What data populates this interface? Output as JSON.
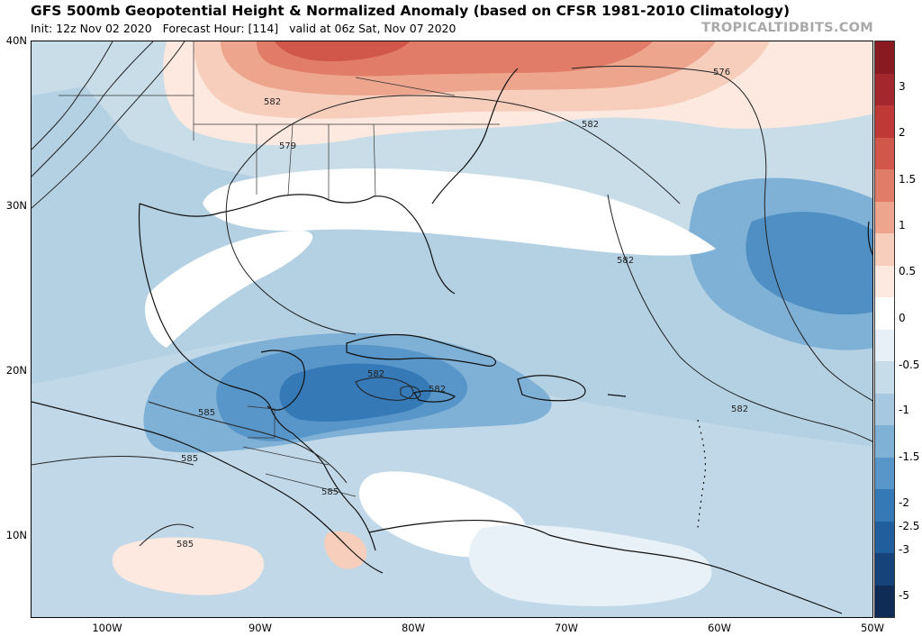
{
  "header": {
    "title": "GFS 500mb Geopotential Height & Normalized Anomaly (based on CFSR 1981-2010 Climatology)",
    "init": "Init: 12z Nov 02 2020",
    "forecast_hour": "Forecast Hour: [114]",
    "valid": "valid at 06z Sat, Nov 07 2020",
    "brand": "TROPICALTIDBITS.COM"
  },
  "axes": {
    "lat_labels": [
      "40N",
      "30N",
      "20N",
      "10N"
    ],
    "lon_labels": [
      "100W",
      "90W",
      "80W",
      "70W",
      "60W",
      "50W"
    ]
  },
  "colorbar": {
    "labels": [
      "3",
      "2",
      "1.5",
      "1",
      "0.5",
      "0",
      "-0.5",
      "-1",
      "-1.5",
      "-2",
      "-2.5",
      "-3",
      "-5"
    ],
    "colors": [
      "#8a1a22",
      "#a3272c",
      "#bf3a36",
      "#d1574a",
      "#e07c67",
      "#eea58e",
      "#f7cdbc",
      "#fde9e0",
      "#ffffff",
      "#e6f0f6",
      "#c6dce9",
      "#a6c8e0",
      "#7fb0d6",
      "#5895c8",
      "#3579b6",
      "#215e9d",
      "#16437a",
      "#0e2c55"
    ]
  },
  "contour_labels": [
    "576",
    "582",
    "582",
    "579",
    "582",
    "582",
    "582",
    "582",
    "585",
    "585",
    "585",
    "585"
  ]
}
